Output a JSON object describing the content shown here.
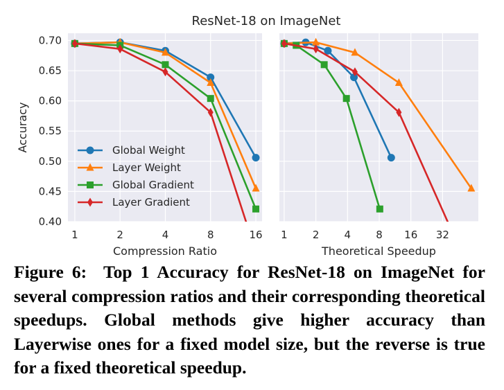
{
  "figure": {
    "suptitle": "ResNet-18 on ImageNet",
    "caption_label": "Figure 6:",
    "caption_text": "Top 1 Accuracy for ResNet-18 on ImageNet for several compression ratios and their corresponding theoretical speedups. Global methods give higher accuracy than Layerwise ones for a fixed model size, but the reverse is true for a fixed theoretical speedup."
  },
  "chart_data": [
    {
      "type": "line",
      "title": "",
      "xlabel": "Compression Ratio",
      "ylabel": "Accuracy",
      "xscale": "log2",
      "xlim": [
        0.9,
        17.6
      ],
      "ylim": [
        0.4,
        0.712
      ],
      "xticks": [
        1,
        2,
        4,
        8,
        16
      ],
      "xtick_labels": [
        "1",
        "2",
        "4",
        "8",
        "16"
      ],
      "yticks": [
        0.4,
        0.45,
        0.5,
        0.55,
        0.6,
        0.65,
        0.7
      ],
      "ytick_labels": [
        "0.40",
        "0.45",
        "0.50",
        "0.55",
        "0.60",
        "0.65",
        "0.70"
      ],
      "grid": true,
      "legend": "center-left",
      "series": [
        {
          "name": "Global Weight",
          "color": "#1f77b4",
          "marker": "circle",
          "x": [
            1,
            2,
            4,
            8,
            16
          ],
          "y": [
            0.695,
            0.697,
            0.683,
            0.639,
            0.506
          ]
        },
        {
          "name": "Layer Weight",
          "color": "#ff7f0e",
          "marker": "triangle",
          "x": [
            1,
            2,
            4,
            8,
            16
          ],
          "y": [
            0.695,
            0.697,
            0.68,
            0.63,
            0.455
          ]
        },
        {
          "name": "Global Gradient",
          "color": "#2ca02c",
          "marker": "square",
          "x": [
            1,
            2,
            4,
            8,
            16
          ],
          "y": [
            0.695,
            0.692,
            0.66,
            0.604,
            0.421
          ]
        },
        {
          "name": "Layer Gradient",
          "color": "#d62728",
          "marker": "diamond",
          "x": [
            1,
            2,
            4,
            8,
            16
          ],
          "y": [
            0.695,
            0.686,
            0.648,
            0.581,
            0.35
          ]
        }
      ]
    },
    {
      "type": "line",
      "title": "",
      "xlabel": "Theoretical Speedup",
      "ylabel": "",
      "xscale": "log2",
      "xlim": [
        0.9,
        70
      ],
      "ylim": [
        0.4,
        0.712
      ],
      "xticks": [
        1,
        2,
        4,
        8,
        16,
        32
      ],
      "xtick_labels": [
        "1",
        "2",
        "4",
        "8",
        "16",
        "32"
      ],
      "yticks": [
        0.4,
        0.45,
        0.5,
        0.55,
        0.6,
        0.65,
        0.7
      ],
      "ytick_labels": [],
      "grid": true,
      "legend": "none",
      "series": [
        {
          "name": "Global Weight",
          "color": "#1f77b4",
          "marker": "circle",
          "x": [
            1,
            1.6,
            2.6,
            4.6,
            10.4
          ],
          "y": [
            0.695,
            0.697,
            0.683,
            0.639,
            0.506
          ]
        },
        {
          "name": "Layer Weight",
          "color": "#ff7f0e",
          "marker": "triangle",
          "x": [
            1,
            2.0,
            4.7,
            12.3,
            60
          ],
          "y": [
            0.695,
            0.697,
            0.68,
            0.63,
            0.455
          ]
        },
        {
          "name": "Global Gradient",
          "color": "#2ca02c",
          "marker": "square",
          "x": [
            1,
            1.3,
            2.4,
            3.9,
            8.1
          ],
          "y": [
            0.695,
            0.692,
            0.66,
            0.604,
            0.421
          ]
        },
        {
          "name": "Layer Gradient",
          "color": "#d62728",
          "marker": "diamond",
          "x": [
            1,
            2.0,
            4.7,
            12.3,
            48
          ],
          "y": [
            0.695,
            0.686,
            0.648,
            0.581,
            0.35
          ]
        }
      ]
    }
  ]
}
